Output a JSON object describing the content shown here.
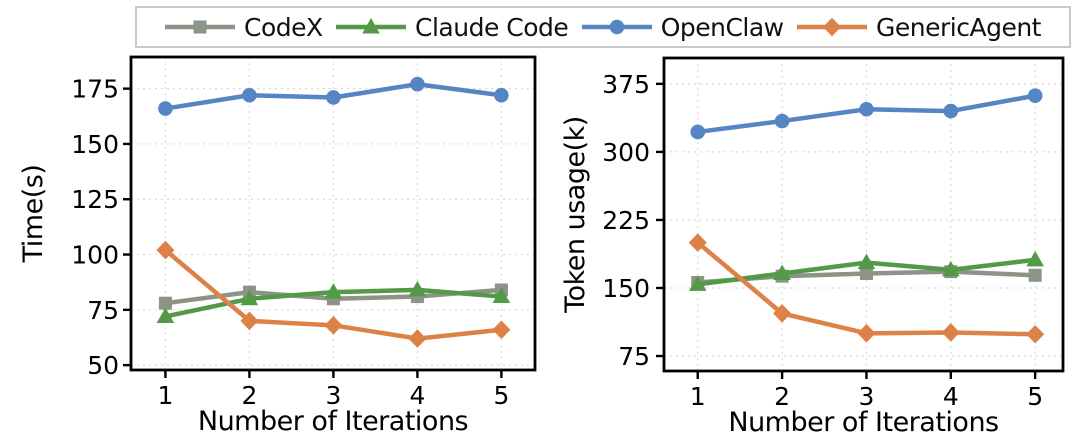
{
  "figure": {
    "background": "#ffffff"
  },
  "legend": {
    "position": "top",
    "border_color": "#c9c9c9",
    "items": [
      {
        "label": "CodeX",
        "color": "#8C9487",
        "marker": "square"
      },
      {
        "label": "Claude Code",
        "color": "#529A46",
        "marker": "triangle"
      },
      {
        "label": "OpenClaw",
        "color": "#5585C2",
        "marker": "circle"
      },
      {
        "label": "GenericAgent",
        "color": "#DC8147",
        "marker": "diamond"
      }
    ]
  },
  "chart_data": [
    {
      "type": "line",
      "title": "",
      "xlabel": "Number of Iterations",
      "ylabel": "Time(s)",
      "x": [
        1,
        2,
        3,
        4,
        5
      ],
      "xticks": [
        "1",
        "2",
        "3",
        "4",
        "5"
      ],
      "yticks": [
        50,
        75,
        100,
        125,
        150,
        175
      ],
      "xlim": [
        0.59,
        5.4
      ],
      "ylim": [
        47.8,
        189.3
      ],
      "grid": true,
      "legend_position": "above-shared",
      "series": [
        {
          "name": "CodeX",
          "marker": "square",
          "color": "#8C9487",
          "values": [
            78,
            83,
            80,
            81,
            84
          ]
        },
        {
          "name": "Claude Code",
          "marker": "triangle",
          "color": "#529A46",
          "values": [
            72,
            80,
            83,
            84,
            81
          ]
        },
        {
          "name": "OpenClaw",
          "marker": "circle",
          "color": "#5585C2",
          "values": [
            166,
            172,
            171,
            177,
            172
          ]
        },
        {
          "name": "GenericAgent",
          "marker": "diamond",
          "color": "#DC8147",
          "values": [
            102,
            70,
            68,
            62,
            66
          ]
        }
      ]
    },
    {
      "type": "line",
      "title": "",
      "xlabel": "Number of Iterations",
      "ylabel": "Token usage(k)",
      "x": [
        1,
        2,
        3,
        4,
        5
      ],
      "xticks": [
        "1",
        "2",
        "3",
        "4",
        "5"
      ],
      "yticks": [
        75,
        150,
        225,
        300,
        375
      ],
      "xlim": [
        0.6,
        5.33
      ],
      "ylim": [
        58.5,
        403.5
      ],
      "grid": true,
      "legend_position": "above-shared",
      "series": [
        {
          "name": "CodeX",
          "marker": "square",
          "color": "#8C9487",
          "values": [
            156,
            163,
            166,
            168,
            164
          ]
        },
        {
          "name": "Claude Code",
          "marker": "triangle",
          "color": "#529A46",
          "values": [
            154,
            166,
            178,
            170,
            181
          ]
        },
        {
          "name": "OpenClaw",
          "marker": "circle",
          "color": "#5585C2",
          "values": [
            322,
            334,
            347,
            345,
            362
          ]
        },
        {
          "name": "GenericAgent",
          "marker": "diamond",
          "color": "#DC8147",
          "values": [
            200,
            122,
            100,
            101,
            99
          ]
        }
      ]
    }
  ]
}
